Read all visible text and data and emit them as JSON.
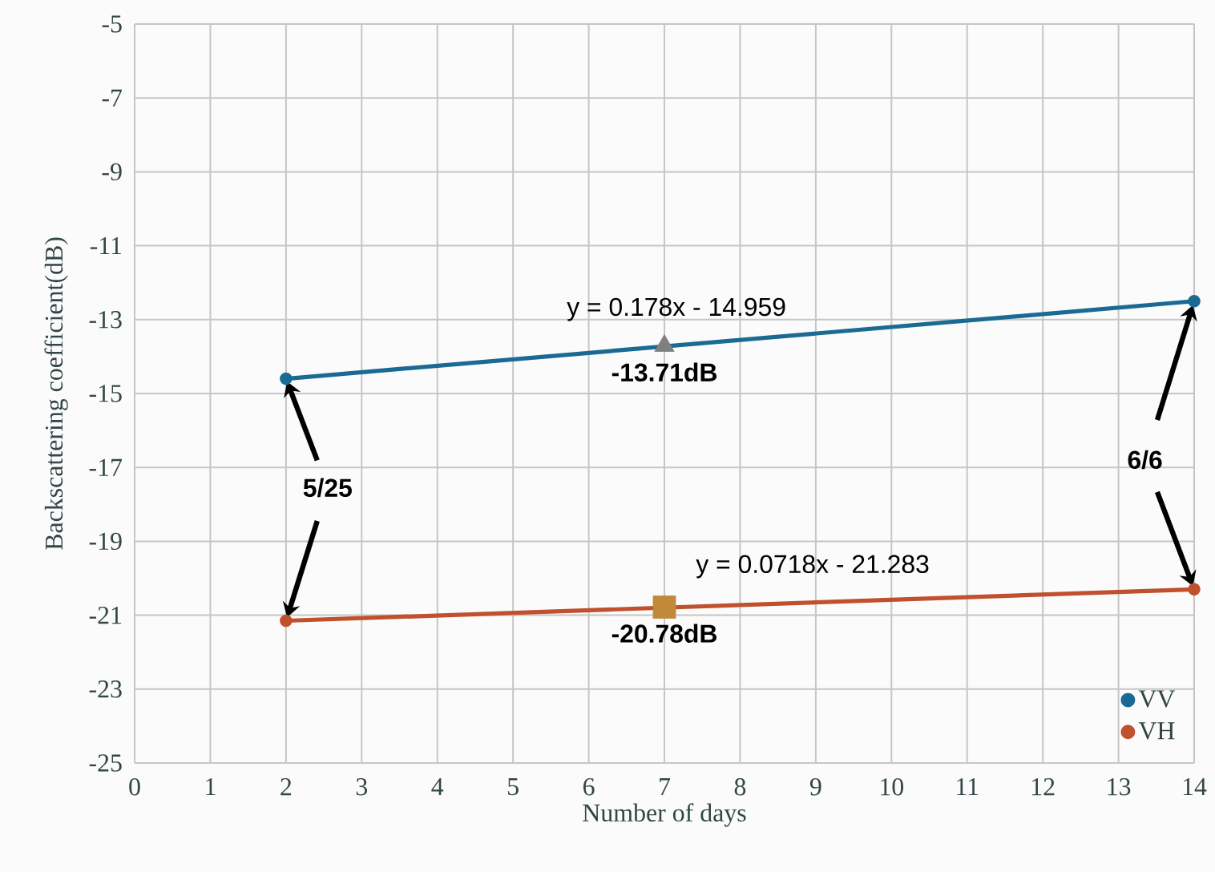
{
  "chart_data": {
    "type": "line",
    "xlabel": "Number of days",
    "ylabel": "Backscattering coefficient(dB)",
    "xlim": [
      0,
      14
    ],
    "xticks": [
      0,
      1,
      2,
      3,
      4,
      5,
      6,
      7,
      8,
      9,
      10,
      11,
      12,
      13,
      14
    ],
    "ylim": [
      -25,
      -5
    ],
    "yticks": [
      -25,
      -23,
      -21,
      -19,
      -17,
      -15,
      -13,
      -11,
      -9,
      -7,
      -5
    ],
    "grid": true,
    "legend": "bottom right",
    "marker": "circle",
    "line_style": "solid",
    "series": [
      {
        "name": "VV",
        "color": "#1a6a94",
        "x": [
          2,
          14
        ],
        "values": [
          -14.6,
          -12.5
        ]
      },
      {
        "name": "VH",
        "color": "#c0502e",
        "x": [
          2,
          14
        ],
        "values": [
          -21.15,
          -20.3
        ]
      },
      {
        "type": "scatter",
        "marker": "triangle",
        "color": "#7f7f7f",
        "x": [
          7
        ],
        "values": [
          -13.71
        ],
        "value_labels": [
          "-13.71dB"
        ]
      },
      {
        "type": "scatter",
        "marker": "square",
        "color": "#c08a3a",
        "x": [
          7
        ],
        "values": [
          -20.78
        ],
        "value_labels": [
          "-20.78dB"
        ]
      }
    ],
    "annotations": [
      "y = 0.178x - 14.959",
      "y = 0.0718x - 21.283",
      {
        "text": "5/25",
        "x": 2,
        "y": -14.6
      },
      {
        "text": "6/6",
        "x": 14,
        "y": -12.5
      }
    ]
  }
}
